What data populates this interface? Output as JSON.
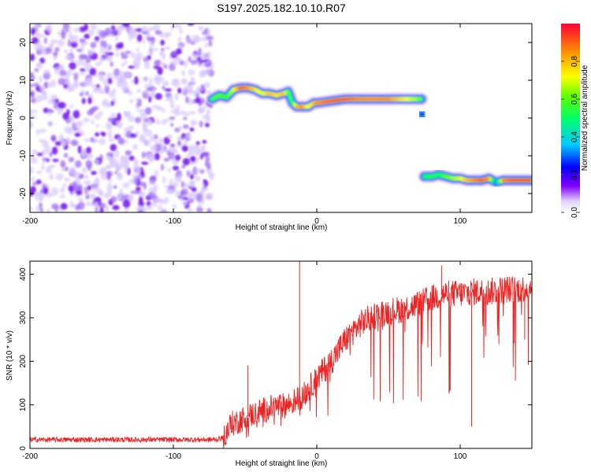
{
  "title": "S197.2025.182.10.10.R07",
  "chart_data": [
    {
      "type": "heatmap",
      "xlabel": "Height of straight line (km)",
      "ylabel": "Frequency (Hz)",
      "xlim": [
        -200,
        150
      ],
      "ylim": [
        -25,
        25
      ],
      "xticks": [
        -200,
        -100,
        0,
        100
      ],
      "yticks": [
        -20,
        -10,
        0,
        10,
        20
      ],
      "colorbar": {
        "label": "Normalized spectral amplitude",
        "range": [
          0,
          1
        ],
        "ticks": [
          0,
          0.2,
          0.4,
          0.6,
          0.8
        ]
      },
      "noise_region": {
        "x_range": [
          -200,
          -73
        ],
        "y_range": [
          -25,
          25
        ]
      },
      "ridges": [
        {
          "x": [
            -73,
            -68,
            -63,
            -58,
            -53,
            -48,
            -43,
            -38,
            -33,
            -28,
            -23,
            -20,
            -17,
            -14,
            -10,
            -6,
            -2,
            0,
            10,
            20,
            30,
            40,
            50,
            60,
            65,
            70,
            73
          ],
          "y": [
            5,
            6,
            5.5,
            7.5,
            8,
            8,
            7.5,
            6.5,
            6.5,
            6,
            6.5,
            7,
            4,
            3,
            3,
            3,
            4,
            4,
            4.5,
            5,
            5,
            5,
            5,
            5,
            5,
            5,
            5
          ],
          "amplitude": [
            0.55,
            0.6,
            0.55,
            0.7,
            0.9,
            0.85,
            0.75,
            0.7,
            0.8,
            0.75,
            0.8,
            0.6,
            0.55,
            0.8,
            0.85,
            0.7,
            0.8,
            0.85,
            0.9,
            0.9,
            0.85,
            0.85,
            0.85,
            0.75,
            0.7,
            0.65,
            0.6
          ]
        },
        {
          "x": [
            73,
            75
          ],
          "y": [
            1,
            1
          ],
          "amplitude": [
            0.2,
            0.2
          ]
        },
        {
          "x": [
            75,
            80,
            85,
            90,
            95,
            100,
            105,
            110,
            115,
            120,
            125,
            130,
            135,
            140,
            145,
            150
          ],
          "y": [
            -15.5,
            -15.5,
            -15,
            -15.5,
            -16,
            -16,
            -16.5,
            -16.5,
            -16.5,
            -16,
            -17,
            -16.5,
            -16.5,
            -16.5,
            -16.5,
            -16.5
          ],
          "amplitude": [
            0.5,
            0.55,
            0.5,
            0.6,
            0.65,
            0.7,
            0.8,
            0.85,
            0.9,
            0.85,
            0.3,
            0.85,
            0.9,
            0.9,
            0.9,
            0.9
          ]
        }
      ]
    },
    {
      "type": "line",
      "xlabel": "Height of straight line (km)",
      "ylabel": "SNR (10 * v/v)",
      "xlim": [
        -200,
        150
      ],
      "ylim": [
        0,
        430
      ],
      "xticks": [
        -200,
        -100,
        0,
        100
      ],
      "yticks": [
        0,
        100,
        200,
        300,
        400
      ],
      "color": "#ee2222",
      "series": [
        {
          "x": [
            -200,
            -150,
            -100,
            -70,
            -65,
            -60,
            -50,
            -40,
            -30,
            -20,
            -10,
            0,
            10,
            20,
            30,
            40,
            50,
            60,
            70,
            80,
            90,
            100,
            110,
            120,
            130,
            140,
            150
          ],
          "y": [
            20,
            20,
            20,
            20,
            25,
            55,
            70,
            85,
            95,
            100,
            120,
            160,
            200,
            250,
            285,
            305,
            315,
            320,
            330,
            345,
            355,
            355,
            360,
            360,
            365,
            365,
            370
          ]
        }
      ],
      "spikes": [
        {
          "x": -12,
          "y": 430
        },
        {
          "x": -48,
          "y": 190
        },
        {
          "x": 87,
          "y": 420
        },
        {
          "x": 108,
          "y": 50
        },
        {
          "x": 145,
          "y": 250
        }
      ]
    }
  ]
}
